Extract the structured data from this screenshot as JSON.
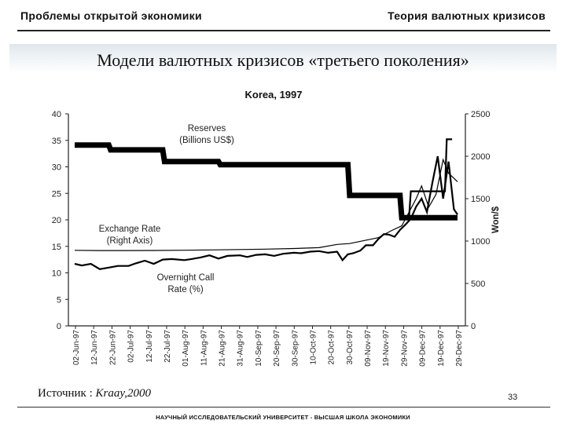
{
  "header": {
    "left_title": "Проблемы открытой экономики",
    "right_title": "Теория валютных кризисов"
  },
  "slide": {
    "title": "Модели валютных кризисов «третьего поколения»",
    "source_prefix": "Источник : ",
    "source_ref": "Kraay,2000",
    "page_number": "33",
    "footer": "НАУЧНЫЙ ИССЛЕДОВАТЕЛЬСКИЙ УНИВЕРСИТЕТ - ВЫСШАЯ ШКОЛА ЭКОНОМИКИ"
  },
  "chart_data": {
    "type": "line",
    "title": "Korea, 1997",
    "y_left_ticks": [
      "0",
      "5",
      "10",
      "15",
      "20",
      "25",
      "30",
      "35",
      "40"
    ],
    "y_left_range": [
      0,
      40
    ],
    "y_right_ticks": [
      "0",
      "500",
      "1000",
      "1500",
      "2000",
      "2500"
    ],
    "y_right_range": [
      0,
      2500
    ],
    "y_right_label": "Won/$",
    "x_ticks": [
      "02-Jun-97",
      "12-Jun-97",
      "22-Jun-97",
      "02-Jul-97",
      "12-Jul-97",
      "22-Jul-97",
      "01-Aug-97",
      "11-Aug-97",
      "21-Aug-97",
      "31-Aug-97",
      "10-Sep-97",
      "20-Sep-97",
      "30-Sep-97",
      "10-Oct-97",
      "20-Oct-97",
      "30-Oct-97",
      "09-Nov-97",
      "19-Nov-97",
      "29-Nov-97",
      "09-Dec-97",
      "19-Dec-97",
      "29-Dec-97"
    ],
    "annotations": {
      "reserves": [
        "Reserves",
        "(Billions US$)"
      ],
      "exchange_rate": [
        "Exchange Rate",
        "(Right Axis)"
      ],
      "call_rate": [
        "Overnight Call",
        "Rate (%)"
      ]
    },
    "series": [
      {
        "name": "Reserves (Billions US$)",
        "axis": "left",
        "style": "step",
        "x": [
          "1997-06-01",
          "1997-06-20",
          "1997-06-21",
          "1997-07-20",
          "1997-07-21",
          "1997-08-20",
          "1997-08-21",
          "1997-10-31",
          "1997-11-01",
          "1997-11-29",
          "1997-11-30",
          "1997-12-31"
        ],
        "y": [
          34.1,
          34.1,
          33.2,
          33.2,
          31.0,
          31.0,
          30.4,
          30.4,
          24.6,
          24.6,
          20.4,
          20.4
        ]
      },
      {
        "name": "Reserves (Billions US$) — revised",
        "axis": "left",
        "style": "step",
        "x": [
          "1997-11-30",
          "1997-12-04",
          "1997-12-05",
          "1997-12-24",
          "1997-12-25",
          "1997-12-28"
        ],
        "y": [
          20.4,
          20.4,
          25.4,
          25.4,
          35.2,
          35.2
        ]
      },
      {
        "name": "Exchange Rate (Right Axis)",
        "axis": "right",
        "style": "line",
        "x": [
          "1997-06-01",
          "1997-06-15",
          "1997-07-01",
          "1997-07-15",
          "1997-08-01",
          "1997-08-15",
          "1997-09-01",
          "1997-09-15",
          "1997-10-01",
          "1997-10-15",
          "1997-10-25",
          "1997-11-01",
          "1997-11-10",
          "1997-11-17",
          "1997-11-24",
          "1997-11-30",
          "1997-12-03",
          "1997-12-08",
          "1997-12-11",
          "1997-12-15",
          "1997-12-19",
          "1997-12-23",
          "1997-12-26",
          "1997-12-31"
        ],
        "y": [
          891,
          888,
          888,
          889,
          892,
          895,
          900,
          905,
          912,
          922,
          960,
          970,
          1010,
          1040,
          1120,
          1180,
          1300,
          1500,
          1650,
          1400,
          1550,
          1960,
          1800,
          1700
        ]
      },
      {
        "name": "Overnight Call Rate (%)",
        "axis": "left",
        "style": "line",
        "x": [
          "1997-06-01",
          "1997-06-05",
          "1997-06-10",
          "1997-06-15",
          "1997-06-20",
          "1997-06-25",
          "1997-07-01",
          "1997-07-05",
          "1997-07-10",
          "1997-07-15",
          "1997-07-20",
          "1997-07-25",
          "1997-08-01",
          "1997-08-05",
          "1997-08-10",
          "1997-08-15",
          "1997-08-20",
          "1997-08-25",
          "1997-09-01",
          "1997-09-05",
          "1997-09-10",
          "1997-09-15",
          "1997-09-20",
          "1997-09-25",
          "1997-10-01",
          "1997-10-05",
          "1997-10-10",
          "1997-10-15",
          "1997-10-20",
          "1997-10-25",
          "1997-10-28",
          "1997-10-31",
          "1997-11-03",
          "1997-11-07",
          "1997-11-10",
          "1997-11-14",
          "1997-11-17",
          "1997-11-20",
          "1997-11-23",
          "1997-11-26",
          "1997-11-29",
          "1997-12-02",
          "1997-12-05",
          "1997-12-08",
          "1997-12-11",
          "1997-12-14",
          "1997-12-17",
          "1997-12-20",
          "1997-12-23",
          "1997-12-26",
          "1997-12-29",
          "1997-12-31"
        ],
        "y": [
          11.7,
          11.4,
          11.7,
          10.7,
          11.0,
          11.3,
          11.3,
          11.8,
          12.3,
          11.7,
          12.5,
          12.6,
          12.4,
          12.6,
          12.9,
          13.3,
          12.7,
          13.2,
          13.3,
          13.0,
          13.4,
          13.5,
          13.2,
          13.6,
          13.8,
          13.7,
          14.0,
          14.1,
          13.8,
          14.0,
          12.4,
          13.5,
          13.7,
          14.2,
          15.2,
          15.2,
          16.4,
          17.3,
          17.2,
          16.8,
          18.1,
          19.1,
          20.2,
          22.5,
          24.0,
          21.5,
          27.0,
          32.0,
          24.0,
          31.0,
          22.0,
          21.0
        ]
      }
    ]
  }
}
